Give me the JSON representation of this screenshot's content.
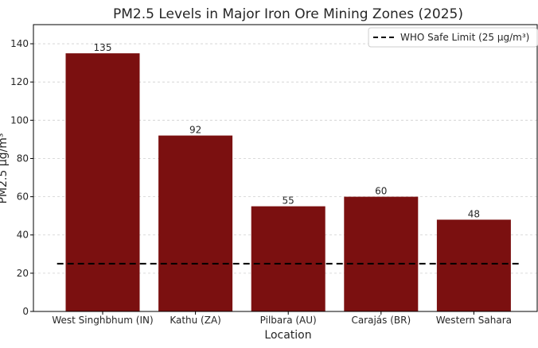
{
  "chart_data": {
    "type": "bar",
    "title": "PM2.5 Levels in Major Iron Ore Mining Zones (2025)",
    "xlabel": "Location",
    "ylabel": "PM2.5 µg/m³",
    "categories": [
      "West Singhbhum (IN)",
      "Kathu (ZA)",
      "Pilbara (AU)",
      "Carajás (BR)",
      "Western Sahara"
    ],
    "values": [
      135,
      92,
      55,
      60,
      48
    ],
    "data_labels": [
      "135",
      "92",
      "55",
      "60",
      "48"
    ],
    "ylim": [
      0,
      150
    ],
    "yticks": [
      0,
      20,
      40,
      60,
      80,
      100,
      120,
      140
    ],
    "grid": "y-dashed",
    "bar_color": "#7b1010",
    "reference_line": {
      "value": 25,
      "label": "WHO Safe Limit (25 µg/m³)",
      "style": "dashed",
      "color": "#000000"
    },
    "legend_position": "top-right"
  }
}
